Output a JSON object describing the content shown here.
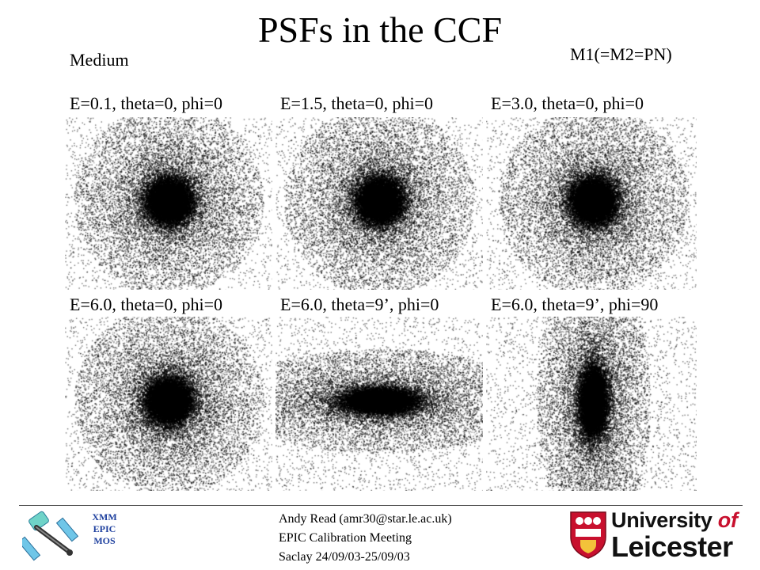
{
  "slide": {
    "title": "PSFs in the CCF",
    "filter_label": "Medium",
    "instrument_label": "M1(=M2=PN)"
  },
  "panels": [
    {
      "label": "E=0.1, theta=0, phi=0",
      "shape": "round"
    },
    {
      "label": "E=1.5, theta=0, phi=0",
      "shape": "round"
    },
    {
      "label": "E=3.0, theta=0, phi=0",
      "shape": "round"
    },
    {
      "label": "E=6.0, theta=0, phi=0",
      "shape": "round"
    },
    {
      "label": "E=6.0, theta=9’, phi=0",
      "shape": "horizontal-elongated"
    },
    {
      "label": "E=6.0, theta=9’, phi=90",
      "shape": "vertical-elongated"
    }
  ],
  "footer": {
    "author_line": "Andy Read (amr30@star.le.ac.uk)",
    "meeting_line": "EPIC Calibration Meeting",
    "location_line": "Saclay 24/09/03-25/09/03",
    "mission_logo": {
      "line1": "XMM",
      "line2": "EPIC",
      "line3": "MOS",
      "icon": "satellite-icon"
    },
    "university_logo": {
      "line1_a": "University",
      "line1_b": "of",
      "line2": "Leicester",
      "icon": "crest-icon"
    }
  },
  "colors": {
    "mission_text": "#1d3f9e",
    "crest_red": "#c8102e",
    "psf_ink": "#000000"
  }
}
